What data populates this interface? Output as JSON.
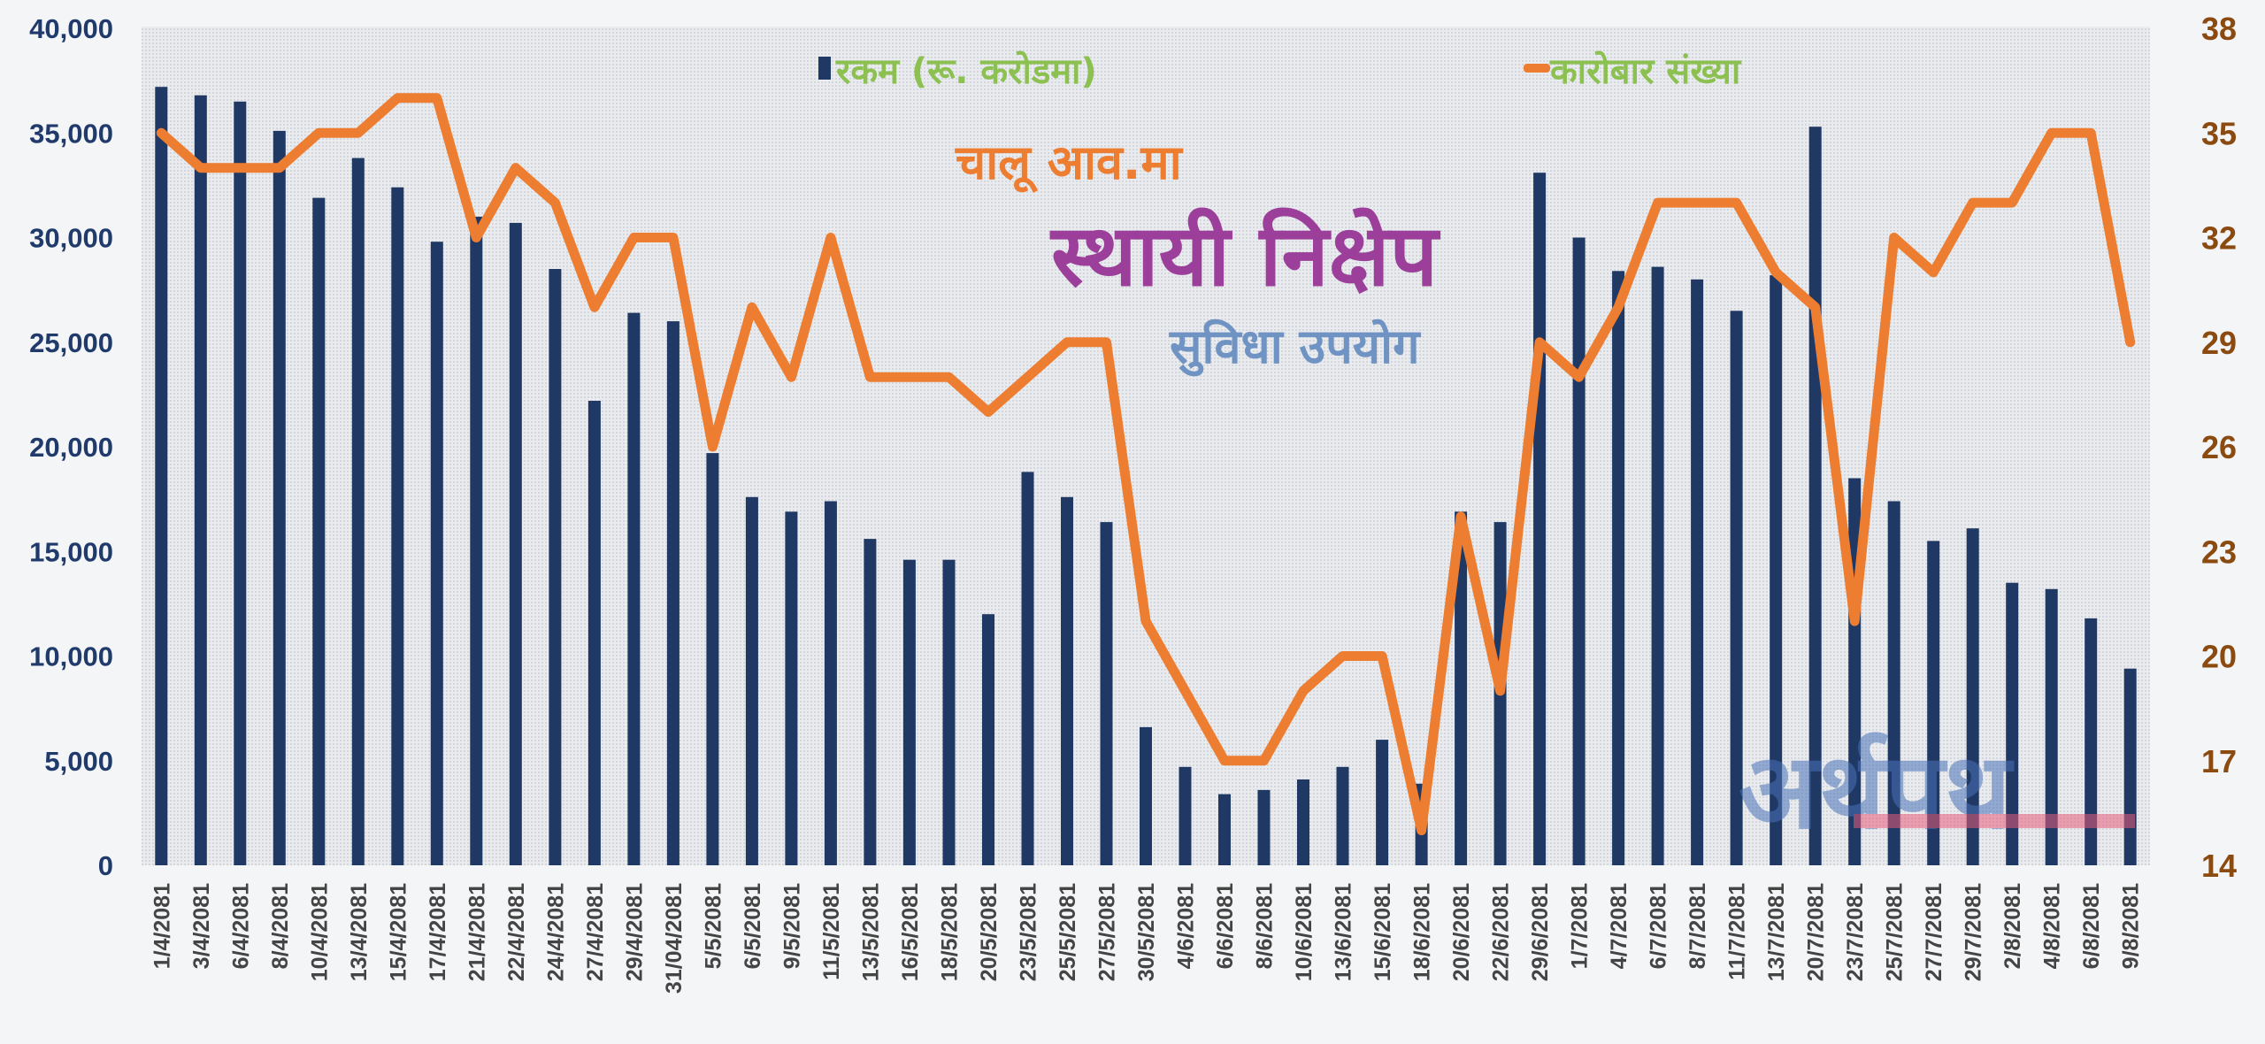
{
  "chart_data": {
    "type": "bar",
    "titles": [
      "चालू आव.मा",
      "स्थायी निक्षेप",
      "सुविधा  उपयोग"
    ],
    "categories": [
      "1/4/2081",
      "3/4/2081",
      "6/4/2081",
      "8/4/2081",
      "10/4/2081",
      "13/4/2081",
      "15/4/2081",
      "17/4/2081",
      "21/4/2081",
      "22/4/2081",
      "24/4/2081",
      "27/4/2081",
      "29/4/2081",
      "31/04/2081",
      "5/5/2081",
      "6/5/2081",
      "9/5/2081",
      "11/5/2081",
      "13/5/2081",
      "16/5/2081",
      "18/5/2081",
      "20/5/2081",
      "23/5/2081",
      "25/5/2081",
      "27/5/2081",
      "30/5/2081",
      "4/6/2081",
      "6/6/2081",
      "8/6/2081",
      "10/6/2081",
      "13/6/2081",
      "15/6/2081",
      "18/6/2081",
      "20/6/2081",
      "22/6/2081",
      "29/6/2081",
      "1/7/2081",
      "4/7/2081",
      "6/7/2081",
      "8/7/2081",
      "11/7/2081",
      "13/7/2081",
      "20/7/2081",
      "23/7/2081",
      "25/7/2081",
      "27/7/2081",
      "29/7/2081",
      "2/8/2081",
      "4/8/2081",
      "6/8/2081",
      "9/8/2081"
    ],
    "series": [
      {
        "name": "रकम (रू. करोडमा)",
        "type": "bar",
        "axis": "left",
        "color": "#1f3864",
        "values": [
          37200,
          36800,
          36500,
          35100,
          31900,
          33800,
          32400,
          29800,
          31000,
          30700,
          28500,
          22200,
          26400,
          26000,
          19700,
          17600,
          16900,
          17400,
          15600,
          14600,
          14600,
          12000,
          18800,
          17600,
          16400,
          6600,
          4700,
          3400,
          3600,
          4100,
          4700,
          6000,
          3900,
          16900,
          16400,
          33100,
          30000,
          28400,
          28600,
          28000,
          26500,
          28200,
          35300,
          18500,
          17400,
          15500,
          16100,
          13500,
          13200,
          11800,
          9400
        ]
      },
      {
        "name": "कारोबार संख्या",
        "type": "line",
        "axis": "right",
        "color": "#ed7d31",
        "values": [
          35,
          34,
          34,
          34,
          35,
          35,
          36,
          36,
          32,
          34,
          33,
          30,
          32,
          32,
          26,
          30,
          28,
          32,
          28,
          28,
          28,
          27,
          28,
          29,
          29,
          21,
          19,
          17,
          17,
          19,
          20,
          20,
          15,
          24,
          19,
          29,
          28,
          30,
          33,
          33,
          33,
          31,
          30,
          21,
          32,
          31,
          33,
          33,
          35,
          35,
          29
        ]
      }
    ],
    "y_left": {
      "ylim": [
        0,
        40000
      ],
      "ticks": [
        "0",
        "5,000",
        "10,000",
        "15,000",
        "20,000",
        "25,000",
        "30,000",
        "35,000",
        "40,000"
      ]
    },
    "y_right": {
      "ylim": [
        14,
        38
      ],
      "ticks": [
        "14",
        "17",
        "20",
        "23",
        "26",
        "29",
        "32",
        "35",
        "38"
      ]
    },
    "legend_placement": "top",
    "grid": false
  },
  "watermark": {
    "text": "अर्थपथ"
  }
}
